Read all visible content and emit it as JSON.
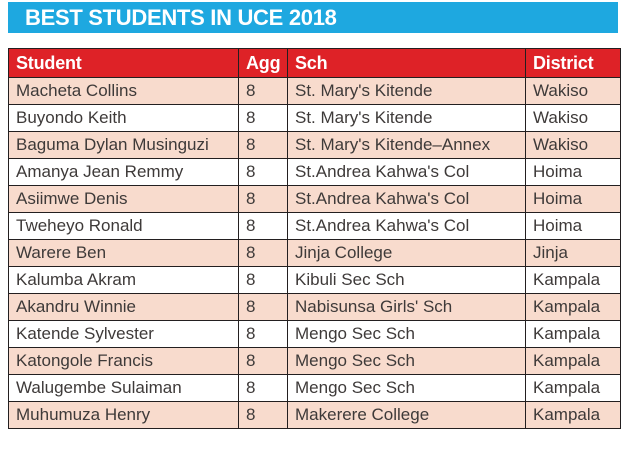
{
  "banner": {
    "title": "BEST STUDENTS IN UCE 2018"
  },
  "colors": {
    "banner_blue": "#1EA8E0",
    "header_red": "#DE2227",
    "row_pink": "#F8DBCD",
    "border": "#231F20",
    "text": "#3E3A39"
  },
  "table": {
    "columns": [
      "Student",
      "Agg",
      "Sch",
      "District"
    ],
    "rows": [
      {
        "student": "Macheta Collins",
        "agg": "8",
        "sch": "St. Mary's Kitende",
        "district": "Wakiso"
      },
      {
        "student": "Buyondo Keith",
        "agg": "8",
        "sch": "St. Mary's Kitende",
        "district": "Wakiso"
      },
      {
        "student": "Baguma Dylan Musinguzi",
        "agg": "8",
        "sch": "St. Mary's Kitende–Annex",
        "district": "Wakiso"
      },
      {
        "student": "Amanya Jean Remmy",
        "agg": "8",
        "sch": "St.Andrea Kahwa's Col",
        "district": "Hoima"
      },
      {
        "student": "Asiimwe Denis",
        "agg": "8",
        "sch": "St.Andrea Kahwa's Col",
        "district": "Hoima"
      },
      {
        "student": "Tweheyo Ronald",
        "agg": "8",
        "sch": "St.Andrea Kahwa's Col",
        "district": "Hoima"
      },
      {
        "student": "Warere Ben",
        "agg": "8",
        "sch": "Jinja College",
        "district": "Jinja"
      },
      {
        "student": "Kalumba Akram",
        "agg": "8",
        "sch": "Kibuli Sec Sch",
        "district": "Kampala"
      },
      {
        "student": "Akandru Winnie",
        "agg": "8",
        "sch": "Nabisunsa Girls' Sch",
        "district": "Kampala"
      },
      {
        "student": "Katende Sylvester",
        "agg": "8",
        "sch": "Mengo Sec Sch",
        "district": "Kampala"
      },
      {
        "student": "Katongole Francis",
        "agg": "8",
        "sch": "Mengo Sec Sch",
        "district": "Kampala"
      },
      {
        "student": "Walugembe Sulaiman",
        "agg": "8",
        "sch": "Mengo Sec Sch",
        "district": "Kampala"
      },
      {
        "student": "Muhumuza Henry",
        "agg": "8",
        "sch": "Makerere College",
        "district": "Kampala"
      }
    ]
  },
  "chart_data": {
    "type": "table",
    "title": "BEST STUDENTS IN UCE 2018",
    "columns": [
      "Student",
      "Agg",
      "Sch",
      "District"
    ],
    "rows": [
      [
        "Macheta Collins",
        8,
        "St. Mary's Kitende",
        "Wakiso"
      ],
      [
        "Buyondo Keith",
        8,
        "St. Mary's Kitende",
        "Wakiso"
      ],
      [
        "Baguma Dylan Musinguzi",
        8,
        "St. Mary's Kitende–Annex",
        "Wakiso"
      ],
      [
        "Amanya Jean Remmy",
        8,
        "St.Andrea Kahwa's Col",
        "Hoima"
      ],
      [
        "Asiimwe Denis",
        8,
        "St.Andrea Kahwa's Col",
        "Hoima"
      ],
      [
        "Tweheyo Ronald",
        8,
        "St.Andrea Kahwa's Col",
        "Hoima"
      ],
      [
        "Warere Ben",
        8,
        "Jinja College",
        "Jinja"
      ],
      [
        "Kalumba Akram",
        8,
        "Kibuli Sec Sch",
        "Kampala"
      ],
      [
        "Akandru Winnie",
        8,
        "Nabisunsa Girls' Sch",
        "Kampala"
      ],
      [
        "Katende Sylvester",
        8,
        "Mengo Sec Sch",
        "Kampala"
      ],
      [
        "Katongole Francis",
        8,
        "Mengo Sec Sch",
        "Kampala"
      ],
      [
        "Walugembe Sulaiman",
        8,
        "Mengo Sec Sch",
        "Kampala"
      ],
      [
        "Muhumuza Henry",
        8,
        "Makerere College",
        "Kampala"
      ]
    ]
  }
}
